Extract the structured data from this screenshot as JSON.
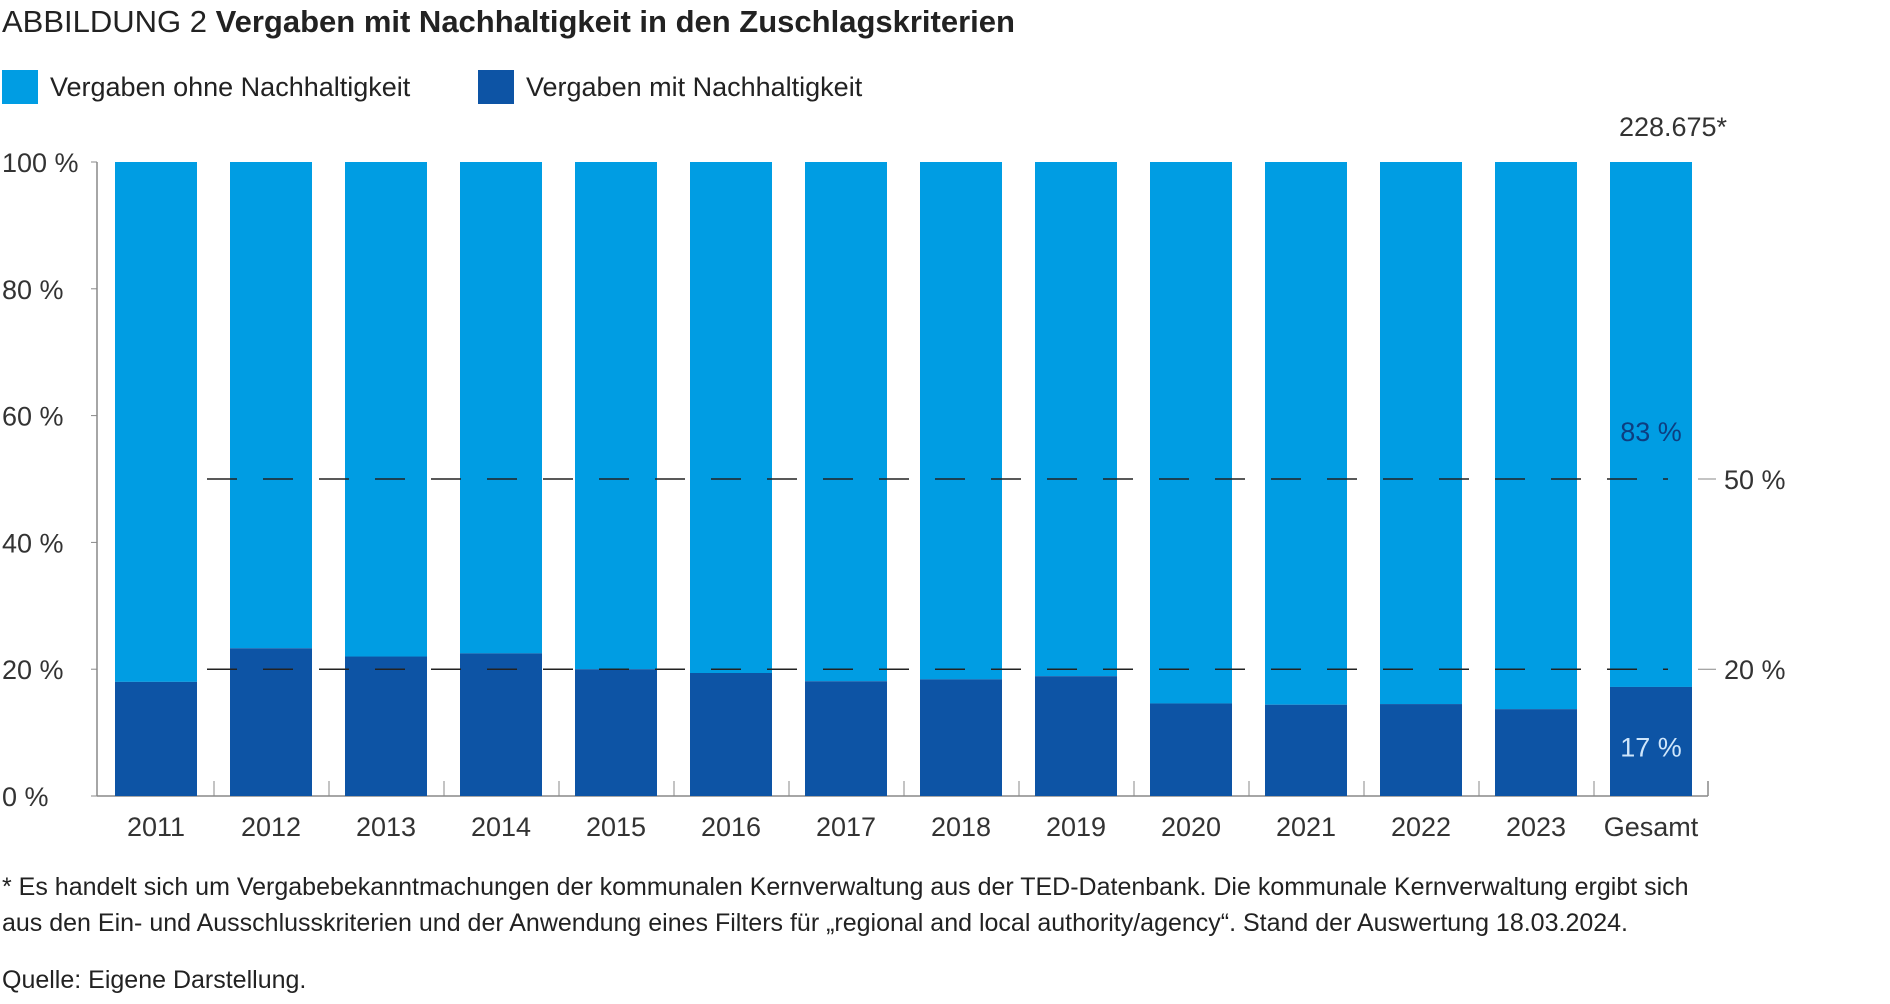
{
  "title": {
    "prefix": "ABBILDUNG 2",
    "main": "Vergaben mit Nachhaltigkeit in den Zuschlagskriterien"
  },
  "colors": {
    "ohne": "#009DE3",
    "mit": "#0D54A5"
  },
  "chart_data": {
    "type": "bar",
    "stacked": true,
    "categories": [
      "2011",
      "2012",
      "2013",
      "2014",
      "2015",
      "2016",
      "2017",
      "2018",
      "2019",
      "2020",
      "2021",
      "2022",
      "2023",
      "Gesamt"
    ],
    "series": [
      {
        "name": "Vergaben mit Nachhaltigkeit",
        "values": [
          18.0,
          23.3,
          22.0,
          22.5,
          20.0,
          19.4,
          18.1,
          18.4,
          18.9,
          14.6,
          14.4,
          14.5,
          13.7,
          17.2
        ]
      },
      {
        "name": "Vergaben ohne Nachhaltigkeit",
        "values": [
          82.0,
          76.7,
          78.0,
          77.5,
          80.0,
          80.6,
          81.9,
          81.6,
          81.1,
          85.4,
          85.6,
          85.5,
          86.3,
          82.8
        ]
      }
    ],
    "ylim": [
      0,
      100
    ],
    "yticks": [
      "0 %",
      "20 %",
      "40 %",
      "60 %",
      "80 %",
      "100 %"
    ],
    "reference_lines": [
      {
        "value": 50,
        "label": "50 %"
      },
      {
        "value": 20,
        "label": "20 %"
      }
    ],
    "annotations": {
      "total": "228.675*",
      "gesamt_ohne": "83 %",
      "gesamt_mit": "17 %"
    },
    "legend": "top-left"
  },
  "footnote": "* Es handelt sich um Vergabebekanntmachungen der kommunalen Kernverwaltung aus der TED-Datenbank. Die kommunale Kernverwaltung ergibt sich",
  "footnote2": "aus den Ein- und Ausschlusskriterien und der Anwendung eines Filters für „regional and local authority/agency“. Stand der Auswertung 18.03.2024.",
  "source": "Quelle: Eigene Darstellung."
}
